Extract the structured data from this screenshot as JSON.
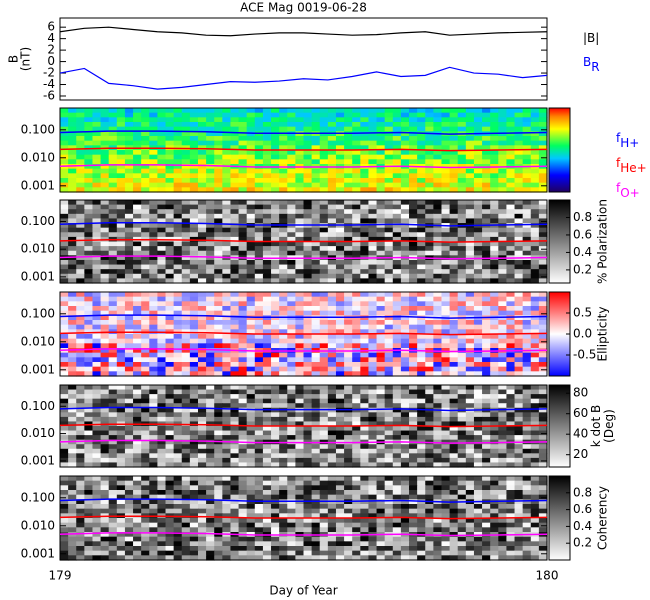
{
  "chart_data": [
    {
      "type": "line",
      "title": "ACE Mag 0019-06-28",
      "ylabel": [
        "B",
        "(nT)"
      ],
      "x": [
        179.0,
        179.05,
        179.1,
        179.15,
        179.2,
        179.25,
        179.3,
        179.35,
        179.4,
        179.45,
        179.5,
        179.55,
        179.6,
        179.65,
        179.7,
        179.75,
        179.8,
        179.85,
        179.9,
        179.95,
        180.0
      ],
      "xlim": [
        179,
        180
      ],
      "ylim": [
        -6.7,
        7.6
      ],
      "yticks": [
        -6,
        -4,
        -2,
        0,
        2,
        4,
        6
      ],
      "series": [
        {
          "name": "|B|",
          "color": "#000000",
          "values": [
            5.2,
            5.8,
            6.0,
            5.6,
            5.2,
            5.0,
            4.6,
            4.5,
            4.8,
            5.0,
            5.0,
            4.8,
            4.6,
            4.7,
            5.0,
            5.2,
            4.6,
            4.8,
            5.0,
            5.1,
            5.2
          ]
        },
        {
          "name": "B",
          "name_sub": "R",
          "color": "#0000ff",
          "values": [
            -2.0,
            -1.2,
            -3.8,
            -4.2,
            -4.8,
            -4.5,
            -4.0,
            -3.5,
            -3.6,
            -3.4,
            -3.0,
            -3.2,
            -2.6,
            -1.8,
            -2.6,
            -2.4,
            -1.0,
            -2.0,
            -2.2,
            -2.8,
            -2.4
          ]
        }
      ]
    },
    {
      "type": "spectrogram",
      "colormap": "jet",
      "log_y": true,
      "legend": true,
      "x": [
        179.0,
        179.1,
        179.2,
        179.3,
        179.4,
        179.5,
        179.6,
        179.7,
        179.8,
        179.9,
        180.0
      ],
      "xlim": [
        179,
        180
      ],
      "ylim": [
        0.0006,
        0.6
      ],
      "yticks": [
        {
          "value": 0.001,
          "label": "0.001"
        },
        {
          "value": 0.01,
          "label": "0.010"
        },
        {
          "value": 0.1,
          "label": "0.100"
        }
      ],
      "series": [
        {
          "name": "f",
          "name_sub": "H+",
          "color": "#0000ff",
          "values": [
            0.08,
            0.09,
            0.09,
            0.085,
            0.075,
            0.075,
            0.075,
            0.08,
            0.07,
            0.075,
            0.08
          ]
        },
        {
          "name": "f",
          "name_sub": "He+",
          "color": "#ff0000",
          "values": [
            0.02,
            0.022,
            0.022,
            0.021,
            0.019,
            0.019,
            0.019,
            0.02,
            0.018,
            0.019,
            0.02
          ]
        },
        {
          "name": "f",
          "name_sub": "O+",
          "color": "#ff00ff",
          "values": [
            0.005,
            0.0056,
            0.0056,
            0.0053,
            0.0047,
            0.0047,
            0.0047,
            0.005,
            0.0045,
            0.0047,
            0.005
          ]
        }
      ]
    },
    {
      "type": "spectrogram",
      "colormap": "gray",
      "log_y": true,
      "colorbar_label": [
        "% Polarization"
      ],
      "colorbar_lim": [
        0.05,
        1.0
      ],
      "colorbar_ticks": [
        0.2,
        0.4,
        0.6,
        0.8
      ],
      "x": [
        179.0,
        179.1,
        179.2,
        179.3,
        179.4,
        179.5,
        179.6,
        179.7,
        179.8,
        179.9,
        180.0
      ],
      "xlim": [
        179,
        180
      ],
      "ylim": [
        0.0006,
        0.6
      ],
      "yticks": [
        {
          "value": 0.001,
          "label": "0.001"
        },
        {
          "value": 0.01,
          "label": "0.010"
        },
        {
          "value": 0.1,
          "label": "0.100"
        }
      ],
      "series": [
        {
          "color": "#0000ff",
          "values": [
            0.08,
            0.09,
            0.09,
            0.085,
            0.075,
            0.075,
            0.075,
            0.08,
            0.07,
            0.075,
            0.08
          ]
        },
        {
          "color": "#ff0000",
          "values": [
            0.02,
            0.022,
            0.022,
            0.021,
            0.019,
            0.019,
            0.019,
            0.02,
            0.018,
            0.019,
            0.02
          ]
        },
        {
          "color": "#ff00ff",
          "values": [
            0.005,
            0.0056,
            0.0056,
            0.0053,
            0.0047,
            0.0047,
            0.0047,
            0.005,
            0.0045,
            0.0047,
            0.005
          ]
        }
      ]
    },
    {
      "type": "spectrogram",
      "colormap": "bwr",
      "log_y": true,
      "colorbar_label": [
        "Ellipticity"
      ],
      "colorbar_lim": [
        -1.0,
        1.0
      ],
      "colorbar_ticks": [
        -0.5,
        {
          "value": 0,
          "label": "0.0"
        },
        0.5
      ],
      "x": [
        179.0,
        179.1,
        179.2,
        179.3,
        179.4,
        179.5,
        179.6,
        179.7,
        179.8,
        179.9,
        180.0
      ],
      "xlim": [
        179,
        180
      ],
      "ylim": [
        0.0006,
        0.6
      ],
      "yticks": [
        {
          "value": 0.001,
          "label": "0.001"
        },
        {
          "value": 0.01,
          "label": "0.010"
        },
        {
          "value": 0.1,
          "label": "0.100"
        }
      ],
      "series": [
        {
          "color": "#0000ff",
          "values": [
            0.08,
            0.09,
            0.09,
            0.085,
            0.075,
            0.075,
            0.075,
            0.08,
            0.07,
            0.075,
            0.08
          ]
        },
        {
          "color": "#ff0000",
          "values": [
            0.02,
            0.022,
            0.022,
            0.021,
            0.019,
            0.019,
            0.019,
            0.02,
            0.018,
            0.019,
            0.02
          ]
        },
        {
          "color": "#ff00ff",
          "values": [
            0.005,
            0.0056,
            0.0056,
            0.0053,
            0.0047,
            0.0047,
            0.0047,
            0.005,
            0.0045,
            0.0047,
            0.005
          ]
        }
      ]
    },
    {
      "type": "spectrogram",
      "colormap": "gray",
      "log_y": true,
      "colorbar_label": [
        "k dot B",
        "(Deg)"
      ],
      "colorbar_lim": [
        8,
        88
      ],
      "colorbar_ticks": [
        20,
        40,
        60,
        80
      ],
      "x": [
        179.0,
        179.1,
        179.2,
        179.3,
        179.4,
        179.5,
        179.6,
        179.7,
        179.8,
        179.9,
        180.0
      ],
      "xlim": [
        179,
        180
      ],
      "ylim": [
        0.0006,
        0.6
      ],
      "yticks": [
        {
          "value": 0.001,
          "label": "0.001"
        },
        {
          "value": 0.01,
          "label": "0.010"
        },
        {
          "value": 0.1,
          "label": "0.100"
        }
      ],
      "series": [
        {
          "color": "#0000ff",
          "values": [
            0.08,
            0.09,
            0.09,
            0.085,
            0.075,
            0.075,
            0.075,
            0.08,
            0.07,
            0.075,
            0.08
          ]
        },
        {
          "color": "#ff0000",
          "values": [
            0.02,
            0.022,
            0.022,
            0.021,
            0.019,
            0.019,
            0.019,
            0.02,
            0.018,
            0.019,
            0.02
          ]
        },
        {
          "color": "#ff00ff",
          "values": [
            0.005,
            0.0056,
            0.0056,
            0.0053,
            0.0047,
            0.0047,
            0.0047,
            0.005,
            0.0045,
            0.0047,
            0.005
          ]
        }
      ]
    },
    {
      "type": "spectrogram",
      "colormap": "gray",
      "log_y": true,
      "colorbar_label": [
        "Coherency"
      ],
      "colorbar_lim": [
        0.0,
        1.0
      ],
      "colorbar_ticks": [
        0.2,
        0.4,
        0.6,
        0.8
      ],
      "x": [
        179.0,
        179.1,
        179.2,
        179.3,
        179.4,
        179.5,
        179.6,
        179.7,
        179.8,
        179.9,
        180.0
      ],
      "xlim": [
        179,
        180
      ],
      "xticks": [
        179,
        180
      ],
      "xlabel": "Day of Year",
      "ylim": [
        0.0006,
        0.6
      ],
      "yticks": [
        {
          "value": 0.001,
          "label": "0.001"
        },
        {
          "value": 0.01,
          "label": "0.010"
        },
        {
          "value": 0.1,
          "label": "0.100"
        }
      ],
      "series": [
        {
          "color": "#0000ff",
          "values": [
            0.08,
            0.09,
            0.09,
            0.085,
            0.075,
            0.075,
            0.075,
            0.08,
            0.07,
            0.075,
            0.08
          ]
        },
        {
          "color": "#ff0000",
          "values": [
            0.02,
            0.022,
            0.022,
            0.021,
            0.019,
            0.019,
            0.019,
            0.02,
            0.018,
            0.019,
            0.02
          ]
        },
        {
          "color": "#ff00ff",
          "values": [
            0.005,
            0.0056,
            0.0056,
            0.0053,
            0.0047,
            0.0047,
            0.0047,
            0.005,
            0.0045,
            0.0047,
            0.005
          ]
        }
      ]
    }
  ]
}
